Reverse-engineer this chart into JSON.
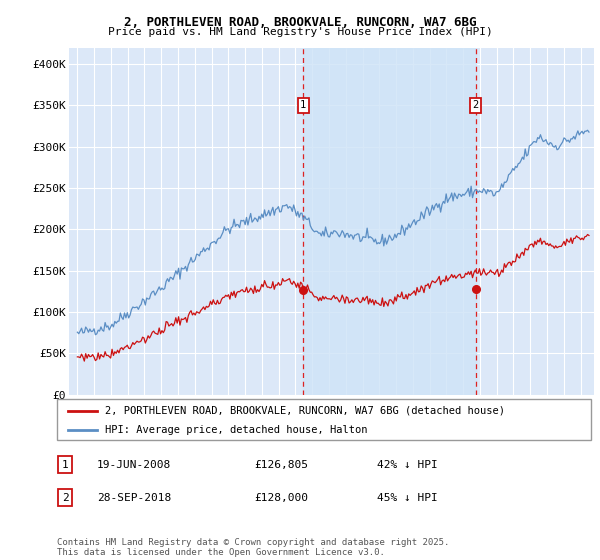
{
  "title1": "2, PORTHLEVEN ROAD, BROOKVALE, RUNCORN, WA7 6BG",
  "title2": "Price paid vs. HM Land Registry's House Price Index (HPI)",
  "background_color": "#dce8f8",
  "grid_color": "#c8d8e8",
  "red_line_label": "2, PORTHLEVEN ROAD, BROOKVALE, RUNCORN, WA7 6BG (detached house)",
  "blue_line_label": "HPI: Average price, detached house, Halton",
  "sale1_date": "19-JUN-2008",
  "sale1_price": 126805,
  "sale1_price_str": "£126,805",
  "sale1_pct": "42% ↓ HPI",
  "sale2_date": "28-SEP-2018",
  "sale2_price": 128000,
  "sale2_price_str": "£128,000",
  "sale2_pct": "45% ↓ HPI",
  "footnote": "Contains HM Land Registry data © Crown copyright and database right 2025.\nThis data is licensed under the Open Government Licence v3.0.",
  "ylim": [
    0,
    420000
  ],
  "yticks": [
    0,
    50000,
    100000,
    150000,
    200000,
    250000,
    300000,
    350000,
    400000
  ],
  "ytick_labels": [
    "£0",
    "£50K",
    "£100K",
    "£150K",
    "£200K",
    "£250K",
    "£300K",
    "£350K",
    "£400K"
  ],
  "xmin": 1994.5,
  "xmax": 2025.8,
  "marker1_x": 2008.47,
  "marker2_x": 2018.74,
  "hpi_color": "#5b8ec4",
  "price_color": "#cc1111",
  "vline_color": "#dd2222",
  "shade_color": "#d0e4f7",
  "shade_alpha": 0.5,
  "legend_border_color": "#999999",
  "marker_box_color": "#cc1111"
}
